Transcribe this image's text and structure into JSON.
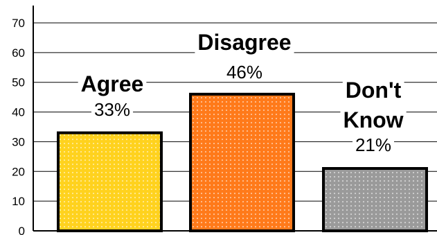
{
  "chart_data": {
    "type": "bar",
    "categories": [
      "Agree",
      "Disagree",
      "Don't Know"
    ],
    "category_lines": [
      [
        "Agree"
      ],
      [
        "Disagree"
      ],
      [
        "Don't",
        "Know"
      ]
    ],
    "values": [
      33,
      46,
      21
    ],
    "data_labels": [
      "33%",
      "46%",
      "21%"
    ],
    "yticks": [
      "0",
      "10",
      "20",
      "30",
      "40",
      "50",
      "60",
      "70"
    ],
    "ylim": [
      0,
      70
    ],
    "grid": true,
    "legend": "none",
    "title": "",
    "xlabel": "",
    "ylabel": "",
    "colors": {
      "agree": "#ffd21e",
      "disagree": "#ff7a1a",
      "dont_know": "#9a9a9a",
      "outline": "#000000",
      "background": "#ffffff"
    }
  }
}
